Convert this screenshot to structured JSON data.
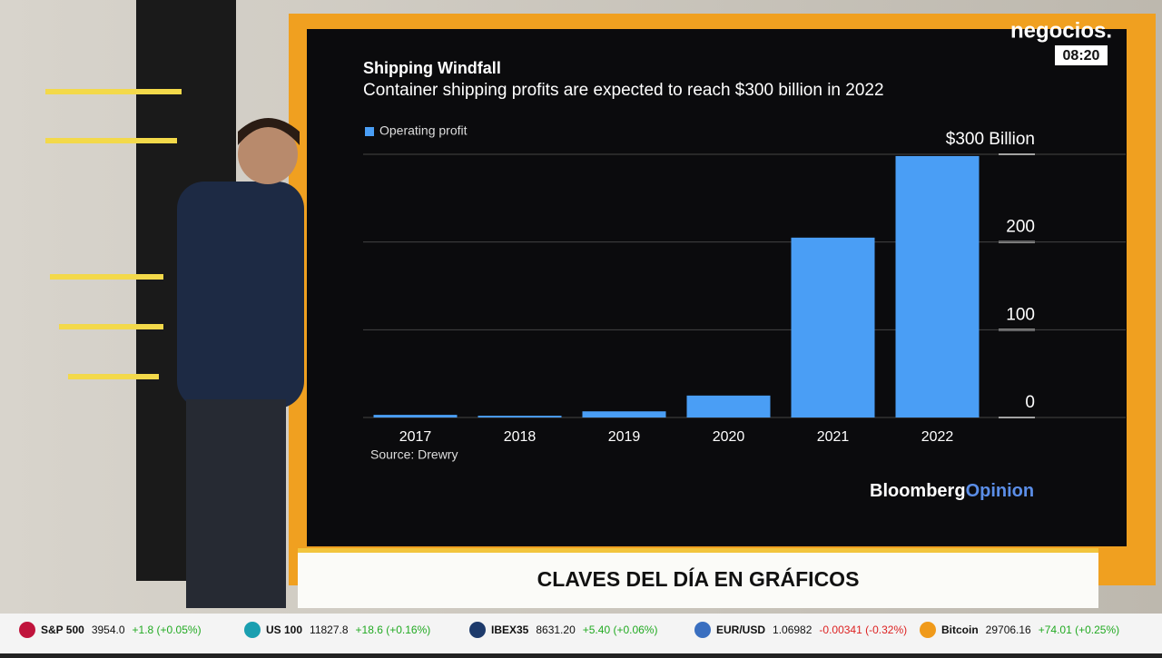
{
  "chart_data": {
    "type": "bar",
    "title": "Shipping Windfall",
    "subtitle": "Container shipping profits are expected to reach $300 billion in 2022",
    "categories": [
      "2017",
      "2018",
      "2019",
      "2020",
      "2021",
      "2022"
    ],
    "series": [
      {
        "name": "Operating profit",
        "color": "#4a9ef5",
        "values": [
          3,
          2,
          7,
          25,
          205,
          298
        ]
      }
    ],
    "ylim": [
      0,
      300
    ],
    "yticks": [
      0,
      100,
      200,
      {
        "value": 300,
        "label": "$300 Billion"
      }
    ],
    "grid": true,
    "source": "Source: Drewry",
    "brand": [
      "Bloomberg",
      "Opinion"
    ]
  },
  "broadcast": {
    "logo": "negocios.",
    "time": "08:20",
    "lower_third": "CLAVES DEL DÍA EN GRÁFICOS",
    "ticker": [
      {
        "name": "S&P 500",
        "value": "3954.0",
        "change": "+1.8 (+0.05%)"
      },
      {
        "name": "US 100",
        "value": "11827.8",
        "change": "+18.6 (+0.16%)"
      },
      {
        "name": "IBEX35",
        "value": "8631.20",
        "change": "+5.40 (+0.06%)"
      },
      {
        "name": "EUR/USD",
        "value": "1.06982",
        "change": "-0.00341 (-0.32%)"
      },
      {
        "name": "Bitcoin",
        "value": "29706.16",
        "change": "+74.01 (+0.25%)"
      }
    ]
  }
}
